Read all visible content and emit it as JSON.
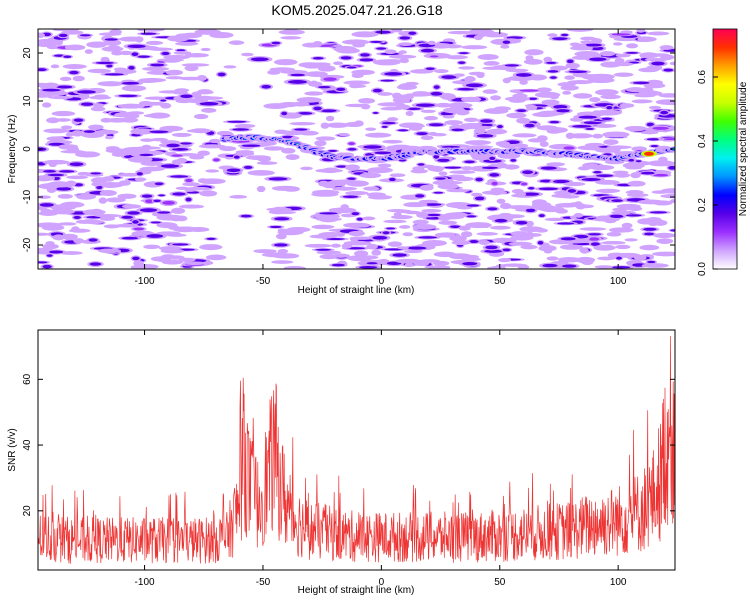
{
  "title": "KOM5.2025.047.21.26.G18",
  "chart_data": [
    {
      "type": "heatmap",
      "xlabel": "Height of straight line (km)",
      "ylabel": "Frequency (Hz)",
      "xlim": [
        -145,
        124
      ],
      "ylim": [
        -25,
        25
      ],
      "xticks": [
        -100,
        -50,
        0,
        50,
        100
      ],
      "yticks": [
        -20,
        -10,
        0,
        10,
        20
      ],
      "grid": false,
      "colorbar": {
        "label": "Normalized spectral amplitude",
        "range": [
          0,
          0.75
        ],
        "ticks": [
          0.0,
          0.2,
          0.4,
          0.6
        ],
        "colormap": [
          "#ffffff",
          "#cfa3ff",
          "#9b30ff",
          "#5500e8",
          "#0000ff",
          "#0095ff",
          "#00f0f0",
          "#00ff80",
          "#40ff00",
          "#c8ff00",
          "#ffff00",
          "#ffa000",
          "#ff3000",
          "#ff0055"
        ]
      },
      "features": [
        {
          "name": "carrier",
          "x": [
            -65,
            -55,
            -45,
            -35,
            -25,
            -15,
            0,
            20,
            40,
            65,
            100,
            110,
            124
          ],
          "y": [
            2,
            2.5,
            2,
            1,
            -1,
            -2,
            -2,
            -0.5,
            -0.5,
            -0.5,
            -2,
            -1,
            0
          ]
        },
        {
          "name": "peak",
          "x": 113,
          "y": -1,
          "amplitude": 0.7
        }
      ]
    },
    {
      "type": "line",
      "xlabel": "Height of straight line (km)",
      "ylabel": "SNR (v/v)",
      "xlim": [
        -145,
        124
      ],
      "ylim": [
        2,
        75
      ],
      "xticks": [
        -100,
        -50,
        0,
        50,
        100
      ],
      "yticks": [
        20,
        40,
        60
      ],
      "grid": false,
      "series": [
        {
          "color": "#ee3333",
          "x": [
            -145,
            -130,
            -110,
            -90,
            -75,
            -65,
            -60,
            -58,
            -56,
            -52,
            -48,
            -45,
            -42,
            -38,
            -30,
            -20,
            -10,
            0,
            20,
            40,
            60,
            80,
            90,
            100,
            110,
            115,
            118,
            120,
            122,
            124
          ],
          "y": [
            12,
            11,
            11,
            11,
            11,
            12,
            22,
            40,
            28,
            22,
            30,
            38,
            26,
            18,
            14,
            13,
            12,
            12,
            12,
            12,
            13,
            14,
            16,
            17,
            20,
            24,
            30,
            40,
            45,
            42
          ]
        }
      ]
    }
  ]
}
